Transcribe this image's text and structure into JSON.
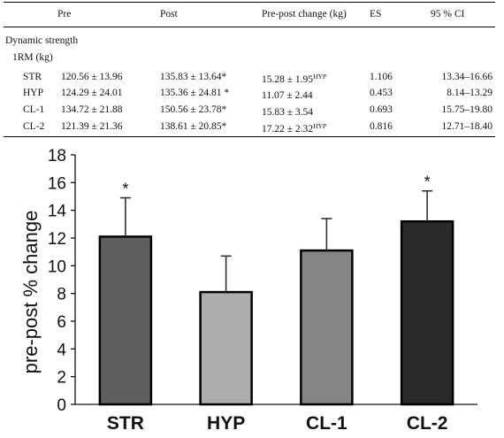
{
  "table": {
    "headers": [
      "Pre",
      "Post",
      "Pre-post change (kg)",
      "ES",
      "95 % CI"
    ],
    "section_label": "Dynamic strength",
    "subsection_label": "1RM (kg)",
    "rows": [
      {
        "group": "STR",
        "pre": "120.56 ± 13.96",
        "post": "135.83 ± 13.64*",
        "change": "15.28 ± 1.95",
        "change_sup": "HYP",
        "es": "1.106",
        "ci": "13.34–16.66"
      },
      {
        "group": "HYP",
        "pre": "124.29 ± 24.01",
        "post": "135.36 ± 24.81 *",
        "change": "11.07 ± 2.44",
        "change_sup": "",
        "es": "0.453",
        "ci": "8.14–13.29"
      },
      {
        "group": "CL-1",
        "pre": "134.72 ± 21.88",
        "post": "150.56 ± 23.78*",
        "change": "15.83 ± 3.54",
        "change_sup": "",
        "es": "0.693",
        "ci": "15.75–19.80"
      },
      {
        "group": "CL-2",
        "pre": "121.39 ± 21.36",
        "post": "138.61 ± 20.85*",
        "change": "17.22 ± 2.32",
        "change_sup": "HYP",
        "es": "0.816",
        "ci": "12.71–18.40"
      }
    ]
  },
  "chart_data": {
    "type": "bar",
    "categories": [
      "STR",
      "HYP",
      "CL-1",
      "CL-2"
    ],
    "values": [
      12.1,
      8.1,
      11.1,
      13.2
    ],
    "error_upper": [
      2.8,
      2.6,
      2.3,
      2.2
    ],
    "significance": [
      "*",
      "",
      "",
      "*"
    ],
    "bar_colors": [
      "#5f5f5f",
      "#adadad",
      "#858585",
      "#2a2a2a"
    ],
    "ylabel": "pre-post % change",
    "xlabel": "",
    "ylim": [
      0,
      18
    ],
    "yticks": [
      "0",
      "2",
      "4",
      "6",
      "8",
      "10",
      "12",
      "14",
      "16",
      "18"
    ],
    "grid": false
  }
}
